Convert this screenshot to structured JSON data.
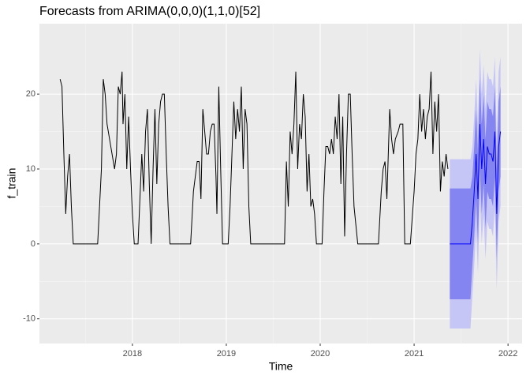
{
  "chart_data": {
    "type": "forecast-line",
    "title": "Forecasts from ARIMA(0,0,0)(1,1,0)[52]",
    "xlabel": "Time",
    "ylabel": "f_train",
    "xlim": [
      2017.01,
      2022.15
    ],
    "ylim": [
      -13.3,
      29.4
    ],
    "xticks": [
      2018,
      2019,
      2020,
      2021,
      2022
    ],
    "yticks": [
      -10,
      0,
      10,
      20
    ],
    "grid": true,
    "x": [
      2017.23,
      2017.25,
      2017.27,
      2017.29,
      2017.31,
      2017.33,
      2017.35,
      2017.37,
      2017.63,
      2017.67,
      2017.69,
      2017.71,
      2017.73,
      2017.77,
      2017.81,
      2017.83,
      2017.85,
      2017.87,
      2017.89,
      2017.9,
      2017.92,
      2017.94,
      2017.96,
      2017.98,
      2018.0,
      2018.02,
      2018.06,
      2018.08,
      2018.1,
      2018.12,
      2018.14,
      2018.16,
      2018.18,
      2018.2,
      2018.22,
      2018.24,
      2018.26,
      2018.28,
      2018.3,
      2018.32,
      2018.34,
      2018.36,
      2018.38,
      2018.4,
      2018.62,
      2018.65,
      2018.67,
      2018.69,
      2018.71,
      2018.73,
      2018.75,
      2018.77,
      2018.79,
      2018.81,
      2018.83,
      2018.85,
      2018.87,
      2018.89,
      2018.9,
      2018.92,
      2018.94,
      2018.96,
      2019.02,
      2019.04,
      2019.06,
      2019.08,
      2019.1,
      2019.12,
      2019.14,
      2019.16,
      2019.18,
      2019.2,
      2019.22,
      2019.24,
      2019.26,
      2019.62,
      2019.64,
      2019.66,
      2019.68,
      2019.7,
      2019.72,
      2019.74,
      2019.76,
      2019.78,
      2019.8,
      2019.82,
      2019.84,
      2019.86,
      2019.88,
      2019.9,
      2019.92,
      2019.94,
      2019.96,
      2020.02,
      2020.04,
      2020.06,
      2020.08,
      2020.1,
      2020.12,
      2020.14,
      2020.16,
      2020.18,
      2020.2,
      2020.22,
      2020.24,
      2020.26,
      2020.28,
      2020.3,
      2020.32,
      2020.34,
      2020.36,
      2020.4,
      2020.62,
      2020.65,
      2020.67,
      2020.69,
      2020.71,
      2020.74,
      2020.76,
      2020.78,
      2020.8,
      2020.83,
      2020.85,
      2020.88,
      2020.9,
      2020.96,
      2021.0,
      2021.02,
      2021.04,
      2021.06,
      2021.08,
      2021.1,
      2021.12,
      2021.14,
      2021.16,
      2021.18,
      2021.2,
      2021.22,
      2021.24,
      2021.26,
      2021.28,
      2021.3,
      2021.32,
      2021.34,
      2021.36
    ],
    "series": [
      {
        "color": "#000000",
        "values": [
          22,
          21,
          12,
          4,
          9,
          12,
          5,
          0,
          0,
          10,
          22,
          20,
          16,
          13,
          10,
          12,
          21,
          20,
          23,
          16,
          20,
          10,
          17,
          10,
          4,
          0,
          0,
          6,
          12,
          7,
          15,
          18,
          8,
          0,
          10,
          18,
          8,
          16,
          19,
          20,
          20,
          12,
          5,
          0,
          0,
          7,
          9,
          11,
          11,
          6,
          18,
          15,
          12,
          12,
          15,
          16,
          16,
          9,
          4,
          21,
          10,
          0,
          0,
          5,
          12,
          19,
          14,
          18,
          15,
          21,
          10,
          18,
          16,
          5,
          0,
          0,
          11,
          5,
          15,
          12,
          16,
          23,
          10,
          16,
          14,
          20,
          17,
          7,
          12,
          5,
          6,
          4,
          0,
          0,
          7,
          13,
          13,
          12,
          14,
          12,
          17,
          14,
          20,
          8,
          17,
          1,
          12,
          20,
          20,
          12,
          5,
          0,
          0,
          7,
          10,
          11,
          6,
          18,
          14,
          12,
          14,
          15,
          16,
          16,
          0,
          0,
          7,
          12,
          14,
          20,
          15,
          18,
          14,
          17,
          18,
          23,
          12,
          19,
          15,
          20,
          7,
          11,
          9,
          12,
          10
        ]
      }
    ],
    "forecast": {
      "x": [
        2021.38,
        2021.6,
        2021.62,
        2021.64,
        2021.66,
        2021.68,
        2021.7,
        2021.72,
        2021.74,
        2021.76,
        2021.78,
        2021.8,
        2021.82,
        2021.84,
        2021.86,
        2021.88,
        2021.9,
        2021.92
      ],
      "mean": [
        0,
        0,
        3,
        7,
        12,
        6,
        16,
        10,
        14,
        8,
        13,
        12,
        12,
        11,
        15,
        4,
        13,
        15
      ],
      "lo80": [
        -7.4,
        -7.4,
        -3,
        1,
        6,
        0,
        10,
        4,
        8,
        2,
        7,
        6,
        6,
        5,
        9,
        -2,
        7,
        9
      ],
      "hi80": [
        7.4,
        7.4,
        9,
        13,
        18,
        12,
        22,
        16,
        20,
        14,
        19,
        18,
        18,
        17,
        21,
        10,
        19,
        21
      ],
      "lo95": [
        -11.3,
        -11.3,
        -7,
        -3,
        2,
        -4,
        6,
        0,
        4,
        -2,
        3,
        2,
        2,
        1,
        5,
        -6,
        3,
        5
      ],
      "hi95": [
        11.3,
        11.3,
        13,
        17,
        22,
        16,
        26,
        20,
        24,
        18,
        23,
        22,
        22,
        21,
        25,
        14,
        23,
        25
      ],
      "mean_color": "#0000ff",
      "band80_color": "#8585f1",
      "band95_color": "#c6c6f6"
    }
  }
}
